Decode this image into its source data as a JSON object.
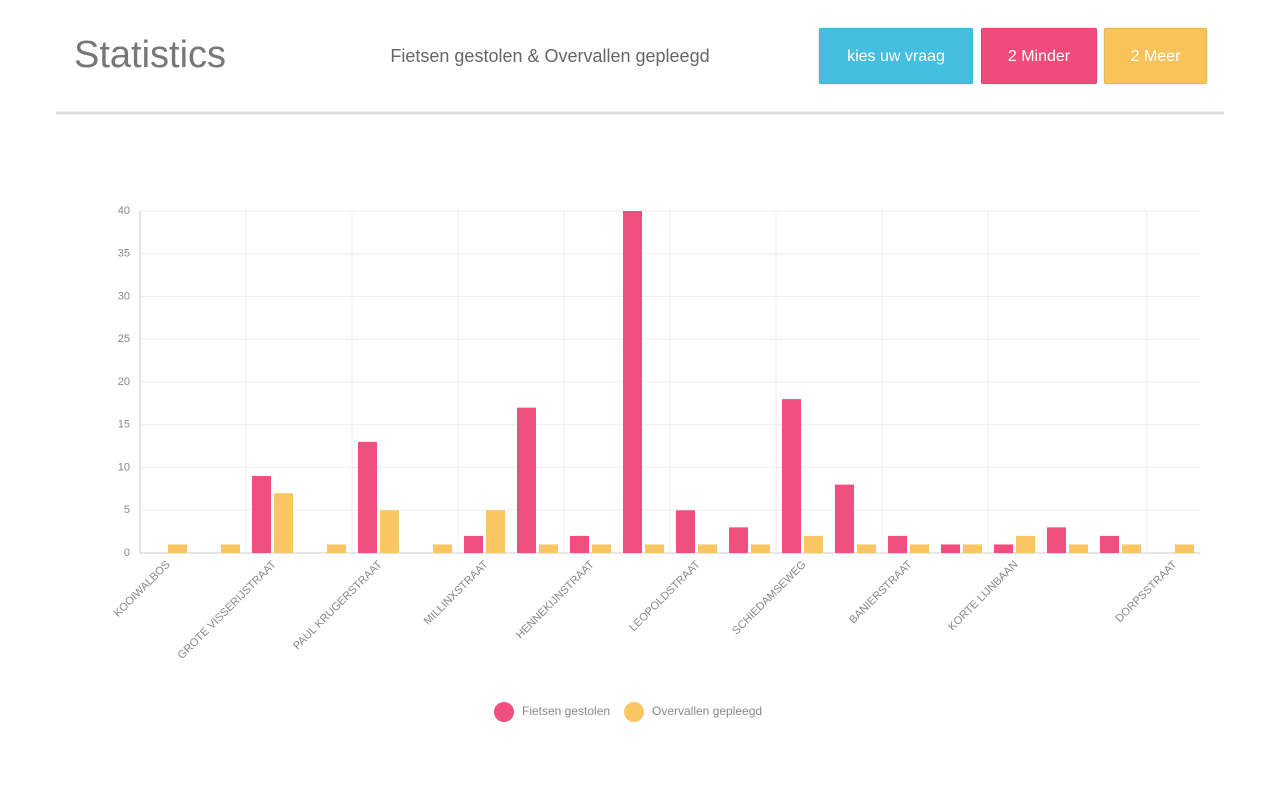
{
  "header": {
    "title": "Statistics",
    "subtitle": "Fietsen gestolen & Overvallen gepleegd",
    "buttons": [
      {
        "label": "kies uw vraag",
        "color": "#45bfdf"
      },
      {
        "label": "2 Minder",
        "color": "#ef4b7b"
      },
      {
        "label": "2 Meer",
        "color": "#f9c35b"
      }
    ]
  },
  "chart_data": {
    "type": "bar",
    "categories": [
      "KOOIWALBOS",
      null,
      "GROTE VISSERIJSTRAAT",
      null,
      "PAUL KRUGERSTRAAT",
      null,
      "MILLINXSTRAAT",
      null,
      "HENNEKIJNSTRAAT",
      null,
      "LEOPOLDSTRAAT",
      null,
      "SCHIEDAMSEWEG",
      null,
      "BANIERSTRAAT",
      null,
      "KORTE LIJNBAAN",
      null,
      null,
      "DORPSSTRAAT"
    ],
    "series": [
      {
        "name": "Fietsen gestolen",
        "color": "#f04e7e",
        "values": [
          0,
          0,
          9,
          0,
          13,
          0,
          2,
          17,
          2,
          40,
          5,
          3,
          18,
          8,
          2,
          1,
          1,
          3,
          2,
          0
        ]
      },
      {
        "name": "Overvallen gepleegd",
        "color": "#fac563",
        "values": [
          1,
          1,
          7,
          1,
          5,
          1,
          5,
          1,
          1,
          1,
          1,
          1,
          2,
          1,
          1,
          1,
          2,
          1,
          1,
          1
        ]
      }
    ],
    "ylim": [
      0,
      40
    ],
    "yticks": [
      0,
      5,
      10,
      15,
      20,
      25,
      30,
      35,
      40
    ],
    "grid": true,
    "legend": "bottom"
  }
}
